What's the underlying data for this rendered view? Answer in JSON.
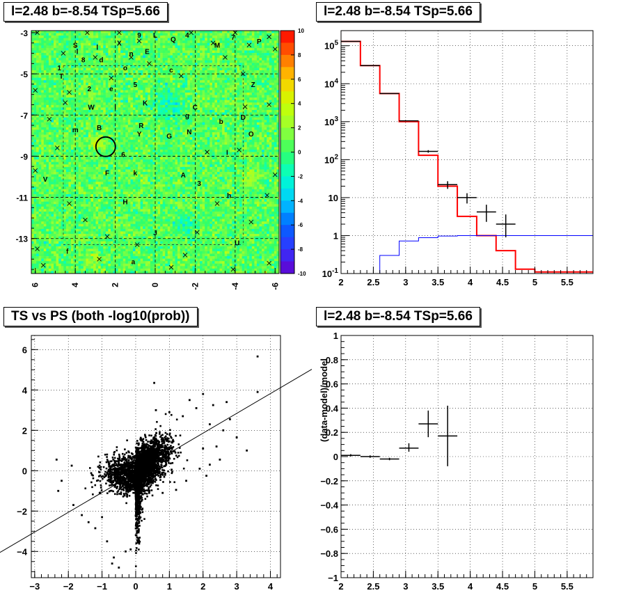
{
  "panels": {
    "skymap_title": "l=2.48 b=-8.54 TSp=5.66",
    "spectrum_title": "l=2.48 b=-8.54 TSp=5.66",
    "scatter_title": "TS vs PS (both -log10(prob))",
    "residual_title": "l=2.48 b=-8.54 TSp=5.66"
  },
  "colors": {
    "data": "#000000",
    "model": "#ff0000",
    "source": "#0000ff",
    "grid": "#000000"
  },
  "chart_data": [
    {
      "type": "heatmap",
      "title": "l=2.48 b=-8.54 TSp=5.66",
      "x_ticks": [
        "6",
        "4",
        "2",
        "0",
        "-2",
        "-4",
        "-6"
      ],
      "y_ticks": [
        "-3",
        "-5",
        "-7",
        "-9",
        "-11",
        "-13"
      ],
      "xlim": [
        6.2,
        -6.2
      ],
      "ylim": [
        -14.7,
        -2.9
      ],
      "zlim": [
        -10,
        10
      ],
      "colorbar_ticks": [
        "10",
        "8",
        "6",
        "4",
        "2",
        "0",
        "-2",
        "-4",
        "-6",
        "-8",
        "-10"
      ],
      "grid": "dashed",
      "circle": {
        "x": 2.48,
        "y": -8.54
      },
      "labels": [
        {
          "t": "S",
          "x": 4.0,
          "y": -3.6
        },
        {
          "t": "l",
          "x": 3.9,
          "y": -3.9
        },
        {
          "t": "1",
          "x": 4.8,
          "y": -4.7
        },
        {
          "t": "T",
          "x": 4.7,
          "y": -5.1
        },
        {
          "t": "8",
          "x": 3.6,
          "y": -4.3
        },
        {
          "t": "d",
          "x": 2.7,
          "y": -4.3
        },
        {
          "t": "l",
          "x": 2.9,
          "y": -3.7
        },
        {
          "t": "X",
          "x": 1.8,
          "y": -3.5
        },
        {
          "t": "9",
          "x": 0.8,
          "y": -3.1
        },
        {
          "t": "n",
          "x": 1.2,
          "y": -4.0
        },
        {
          "t": "o",
          "x": 1.5,
          "y": -4.7
        },
        {
          "t": "E",
          "x": 0.4,
          "y": -3.9
        },
        {
          "t": "L",
          "x": 0.0,
          "y": -3.1
        },
        {
          "t": "Q",
          "x": -0.9,
          "y": -3.3
        },
        {
          "t": "4",
          "x": -1.6,
          "y": -3.1
        },
        {
          "t": "M",
          "x": -3.1,
          "y": -3.6
        },
        {
          "t": "7",
          "x": -3.9,
          "y": -3.2
        },
        {
          "t": "P",
          "x": -5.2,
          "y": -3.4
        },
        {
          "t": "c",
          "x": -0.8,
          "y": -4.8
        },
        {
          "t": "Z",
          "x": -4.9,
          "y": -5.5
        },
        {
          "t": "2",
          "x": 3.3,
          "y": -5.7
        },
        {
          "t": "e",
          "x": 2.2,
          "y": -5.7
        },
        {
          "t": "5",
          "x": 1.0,
          "y": -5.5
        },
        {
          "t": "K",
          "x": 0.5,
          "y": -6.4
        },
        {
          "t": "W",
          "x": 3.2,
          "y": -6.6
        },
        {
          "t": "l",
          "x": 2.0,
          "y": -6.6
        },
        {
          "t": "C",
          "x": -2.0,
          "y": -6.6
        },
        {
          "t": "g",
          "x": -1.6,
          "y": -7.0
        },
        {
          "t": "b",
          "x": -3.3,
          "y": -7.3
        },
        {
          "t": "D",
          "x": -4.4,
          "y": -7.1
        },
        {
          "t": "m",
          "x": 4.0,
          "y": -7.7
        },
        {
          "t": "B",
          "x": 2.8,
          "y": -7.6
        },
        {
          "t": "R",
          "x": 0.7,
          "y": -7.5
        },
        {
          "t": "Y",
          "x": 0.8,
          "y": -7.9
        },
        {
          "t": "N",
          "x": -1.7,
          "y": -7.8
        },
        {
          "t": "O",
          "x": -4.8,
          "y": -7.9
        },
        {
          "t": "G",
          "x": -0.7,
          "y": -8.0
        },
        {
          "t": "6",
          "x": 1.6,
          "y": -8.9
        },
        {
          "t": "I",
          "x": -3.6,
          "y": -8.8
        },
        {
          "t": "F",
          "x": 2.4,
          "y": -9.8
        },
        {
          "t": "k",
          "x": 1.0,
          "y": -9.8
        },
        {
          "t": "A",
          "x": -1.4,
          "y": -9.9
        },
        {
          "t": "V",
          "x": 5.5,
          "y": -10.1
        },
        {
          "t": "3",
          "x": -2.2,
          "y": -10.3
        },
        {
          "t": "h",
          "x": -3.7,
          "y": -10.9
        },
        {
          "t": "H",
          "x": 1.5,
          "y": -11.2
        },
        {
          "t": "J",
          "x": 0.0,
          "y": -12.7
        },
        {
          "t": "U",
          "x": -4.1,
          "y": -13.2
        },
        {
          "t": "f",
          "x": 4.4,
          "y": -13.6
        },
        {
          "t": "a",
          "x": 1.1,
          "y": -14.1
        }
      ],
      "crosses": [
        [
          5.9,
          -3.0
        ],
        [
          3.4,
          -3.0
        ],
        [
          1.8,
          -3.0
        ],
        [
          -1.8,
          -3.0
        ],
        [
          -4.0,
          -3.0
        ],
        [
          -5.7,
          -3.2
        ],
        [
          0.8,
          -3.4
        ],
        [
          -2.9,
          -3.5
        ],
        [
          -4.7,
          -3.6
        ],
        [
          -6.0,
          -3.8
        ],
        [
          4.6,
          -4.0
        ],
        [
          3.0,
          -4.2
        ],
        [
          1.2,
          -4.2
        ],
        [
          0.3,
          -4.5
        ],
        [
          -3.5,
          -4.2
        ],
        [
          6.0,
          -5.8
        ],
        [
          2.2,
          -5.2
        ],
        [
          -1.3,
          -5.1
        ],
        [
          -4.4,
          -5.0
        ],
        [
          4.3,
          -5.9
        ],
        [
          4.5,
          -6.4
        ],
        [
          -5.7,
          -6.5
        ],
        [
          -4.5,
          -6.6
        ],
        [
          5.3,
          -7.2
        ],
        [
          4.9,
          -8.6
        ],
        [
          -2.6,
          -8.8
        ],
        [
          -4.2,
          -8.7
        ],
        [
          6.0,
          -9.7
        ],
        [
          -6.0,
          -9.9
        ],
        [
          -5.6,
          -10.9
        ],
        [
          4.3,
          -11.3
        ],
        [
          3.5,
          -12.1
        ],
        [
          -3.1,
          -11.3
        ],
        [
          -4.8,
          -12.2
        ],
        [
          2.4,
          -12.9
        ],
        [
          0.9,
          -13.3
        ],
        [
          5.9,
          -13.5
        ],
        [
          -1.5,
          -13.8
        ],
        [
          -5.7,
          -14.2
        ],
        [
          5.6,
          -14.3
        ],
        [
          -3.9,
          -14.5
        ],
        [
          -0.8,
          -14.4
        ],
        [
          2.8,
          -14.0
        ],
        [
          -2.1,
          -12.7
        ]
      ]
    },
    {
      "type": "line",
      "title": "l=2.48 b=-8.54 TSp=5.66",
      "x_scale": "linear",
      "y_scale": "log",
      "xlim": [
        2.0,
        5.9
      ],
      "ylim": [
        0.1,
        250000
      ],
      "x_ticks": [
        "2",
        "2.5",
        "3",
        "3.5",
        "4",
        "4.5",
        "5",
        "5.5"
      ],
      "y_ticks": [
        "10^-1",
        "1",
        "10",
        "10^2",
        "10^3",
        "10^4",
        "10^5"
      ],
      "grid": "dotted",
      "series": [
        {
          "name": "",
          "style": "hist",
          "color": "#ff0000",
          "edges": [
            2.0,
            2.3,
            2.6,
            2.9,
            3.2,
            3.5,
            3.8,
            4.1,
            4.4,
            4.7,
            5.0,
            5.3,
            5.6,
            5.9
          ],
          "values": [
            130000,
            30000,
            5500,
            1000,
            130,
            20,
            3.2,
            1.0,
            0.4,
            0.13,
            0.11,
            0.11,
            0.11
          ]
        },
        {
          "name": "",
          "style": "hist",
          "color": "#0000ff",
          "edges": [
            2.6,
            2.9,
            3.2,
            3.5,
            3.8,
            4.1,
            4.4,
            4.7,
            5.0,
            5.3,
            5.6,
            5.9
          ],
          "values": [
            0.3,
            0.72,
            0.88,
            0.97,
            1.0,
            1.0,
            1.0,
            1.0,
            1.0,
            1.0,
            1.0
          ]
        },
        {
          "name": "",
          "style": "errorbar",
          "color": "#000000",
          "points": [
            {
              "x": 2.15,
              "y": 130000,
              "xerr": 0.15,
              "ylo": 129000,
              "yhi": 131000
            },
            {
              "x": 2.45,
              "y": 30000,
              "xerr": 0.15,
              "ylo": 29800,
              "yhi": 30200
            },
            {
              "x": 2.75,
              "y": 5500,
              "xerr": 0.15,
              "ylo": 5420,
              "yhi": 5580
            },
            {
              "x": 3.05,
              "y": 1050,
              "xerr": 0.15,
              "ylo": 1020,
              "yhi": 1080
            },
            {
              "x": 3.35,
              "y": 165,
              "xerr": 0.15,
              "ylo": 152,
              "yhi": 178
            },
            {
              "x": 3.65,
              "y": 22,
              "xerr": 0.15,
              "ylo": 17,
              "yhi": 27
            },
            {
              "x": 3.95,
              "y": 10,
              "xerr": 0.15,
              "ylo": 7,
              "yhi": 13
            },
            {
              "x": 4.25,
              "y": 4.2,
              "xerr": 0.15,
              "ylo": 2.3,
              "yhi": 6.5
            },
            {
              "x": 4.55,
              "y": 2.0,
              "xerr": 0.15,
              "ylo": 0.9,
              "yhi": 3.6
            }
          ]
        }
      ]
    },
    {
      "type": "scatter",
      "title": "TS vs PS (both -log10(prob))",
      "xlim": [
        -3.1,
        4.3
      ],
      "ylim": [
        -5.3,
        6.7
      ],
      "x_ticks": [
        "-3",
        "-2",
        "-1",
        "0",
        "1",
        "2",
        "3",
        "4"
      ],
      "y_ticks": [
        "-4",
        "-2",
        "0",
        "2",
        "4",
        "6"
      ],
      "grid": "dotted",
      "fit_line": {
        "slope": 0.98,
        "intercept": -0.1
      },
      "outliers": [
        [
          3.62,
          5.66
        ],
        [
          3.62,
          3.9
        ],
        [
          2.7,
          3.4
        ],
        [
          2.3,
          3.25
        ],
        [
          2.0,
          3.8
        ],
        [
          0.55,
          4.35
        ],
        [
          1.6,
          3.5
        ],
        [
          2.8,
          2.55
        ],
        [
          1.8,
          3.1
        ],
        [
          2.2,
          2.3
        ],
        [
          2.6,
          2.0
        ],
        [
          3.0,
          1.65
        ],
        [
          3.3,
          1.0
        ],
        [
          2.4,
          1.2
        ],
        [
          2.0,
          1.1
        ],
        [
          2.5,
          0.55
        ],
        [
          2.2,
          0.3
        ],
        [
          1.9,
          0.1
        ],
        [
          2.1,
          -0.25
        ],
        [
          1.5,
          -0.5
        ],
        [
          1.2,
          -0.95
        ],
        [
          0.8,
          -1.1
        ],
        [
          -2.35,
          0.55
        ],
        [
          -2.2,
          -0.5
        ],
        [
          -1.9,
          0.25
        ],
        [
          -1.85,
          -1.7
        ],
        [
          -1.6,
          -2.2
        ],
        [
          -1.4,
          -2.55
        ],
        [
          -1.3,
          -0.2
        ],
        [
          -1.2,
          -2.85
        ],
        [
          -1.0,
          -2.3
        ],
        [
          -0.85,
          -3.5
        ],
        [
          -0.65,
          -4.3
        ],
        [
          -0.5,
          -4.8
        ],
        [
          -0.3,
          -4.0
        ],
        [
          -2.3,
          -1.0
        ],
        [
          -0.7,
          -4.6
        ],
        [
          -0.15,
          -3.9
        ],
        [
          0.4,
          -1.1
        ],
        [
          1.0,
          2.9
        ],
        [
          0.6,
          3.0
        ],
        [
          1.4,
          2.7
        ]
      ]
    },
    {
      "type": "line",
      "title": "l=2.48 b=-8.54 TSp=5.66",
      "ylabel": "(data-model)/model",
      "xlim": [
        2.0,
        5.9
      ],
      "ylim": [
        -1,
        1
      ],
      "x_ticks": [
        "2",
        "2.5",
        "3",
        "3.5",
        "4",
        "4.5",
        "5",
        "5.5"
      ],
      "y_ticks": [
        "-1",
        "-0.8",
        "-0.6",
        "-0.4",
        "-0.2",
        "0",
        "0.2",
        "0.4",
        "0.6",
        "0.8",
        "1"
      ],
      "grid": "dotted",
      "series": [
        {
          "name": "",
          "style": "errorbar",
          "color": "#000000",
          "points": [
            {
              "x": 2.15,
              "y": 0.01,
              "xerr": 0.15,
              "ylo": 0.0,
              "yhi": 0.02
            },
            {
              "x": 2.45,
              "y": 0.0,
              "xerr": 0.15,
              "ylo": -0.01,
              "yhi": 0.01
            },
            {
              "x": 2.75,
              "y": -0.02,
              "xerr": 0.15,
              "ylo": -0.03,
              "yhi": -0.01
            },
            {
              "x": 3.05,
              "y": 0.07,
              "xerr": 0.15,
              "ylo": 0.04,
              "yhi": 0.11
            },
            {
              "x": 3.35,
              "y": 0.27,
              "xerr": 0.15,
              "ylo": 0.16,
              "yhi": 0.38
            },
            {
              "x": 3.65,
              "y": 0.17,
              "xerr": 0.15,
              "ylo": -0.08,
              "yhi": 0.42
            }
          ]
        }
      ]
    }
  ]
}
